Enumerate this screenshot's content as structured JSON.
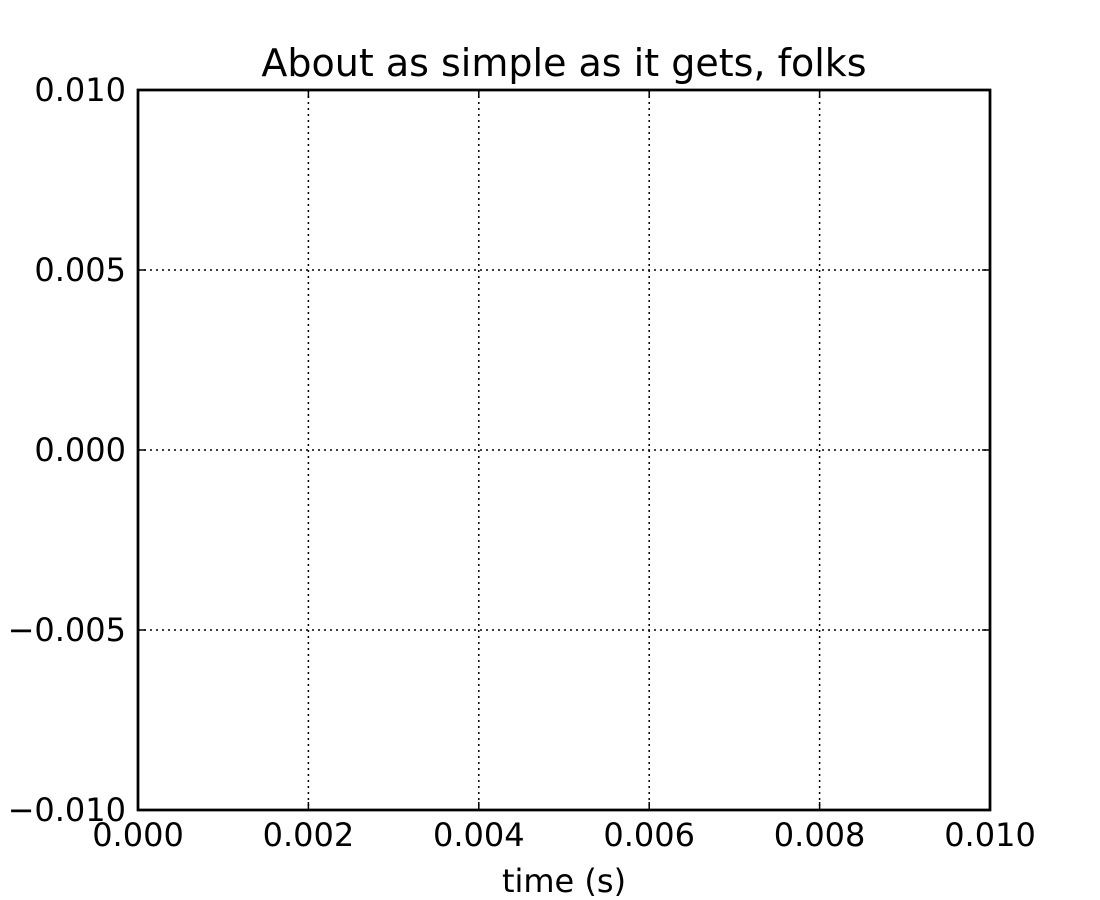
{
  "chart_data": {
    "type": "line",
    "title": "About as simple as it gets, folks",
    "xlabel": "time (s)",
    "ylabel": "",
    "xlim": [
      0.0,
      0.01
    ],
    "ylim": [
      -0.01,
      0.01
    ],
    "xticks": [
      0.0,
      0.002,
      0.004,
      0.006,
      0.008,
      0.01
    ],
    "xtick_labels": [
      "0.000",
      "0.002",
      "0.004",
      "0.006",
      "0.008",
      "0.010"
    ],
    "yticks": [
      -0.01,
      -0.005,
      0.0,
      0.005,
      0.01
    ],
    "ytick_labels": [
      "−0.010",
      "−0.005",
      "0.000",
      "0.005",
      "0.010"
    ],
    "grid": true,
    "grid_style": "dotted",
    "series": [
      {
        "x": [],
        "y": []
      }
    ],
    "colors": {
      "frame": "#000000",
      "grid": "#000000",
      "background": "#ffffff"
    }
  }
}
